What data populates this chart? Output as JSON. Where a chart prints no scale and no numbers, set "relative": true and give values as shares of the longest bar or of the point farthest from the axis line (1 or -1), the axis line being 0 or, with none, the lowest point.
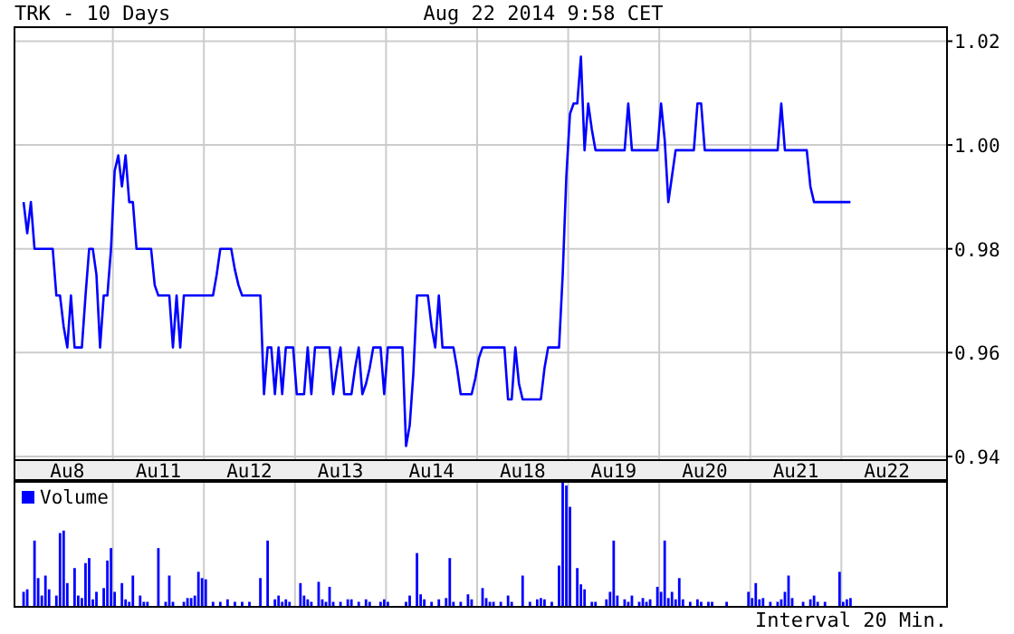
{
  "chart_data": [
    {
      "type": "line",
      "title": "TRK - 10 Days",
      "subtitle": "Aug 22 2014 9:58 CET",
      "color": "#0000ff",
      "grid": true,
      "categories": [
        null,
        null,
        null,
        null,
        null,
        null,
        null,
        null,
        null,
        null,
        null,
        null,
        null,
        null,
        "Au8",
        null,
        null,
        null,
        null,
        null,
        null,
        null,
        null,
        null,
        null,
        null,
        null,
        null,
        null,
        null,
        null,
        null,
        null,
        null,
        null,
        null,
        null,
        null,
        null,
        "Au11",
        null,
        null,
        null,
        null,
        null,
        null,
        null,
        null,
        null,
        null,
        null,
        null,
        null,
        null,
        null,
        null,
        null,
        null,
        null,
        null,
        null,
        null,
        null,
        null,
        "Au12",
        null,
        null,
        null,
        null,
        null,
        null,
        null,
        null,
        null,
        null,
        null,
        null,
        null,
        null,
        null,
        null,
        null,
        null,
        null,
        null,
        null,
        null,
        null,
        null,
        "Au13",
        null,
        null,
        null,
        null,
        null,
        null,
        null,
        null,
        null,
        null,
        null,
        null,
        null,
        null,
        null,
        null,
        null,
        null,
        null,
        null,
        null,
        null,
        null,
        null,
        "Au14",
        null,
        null,
        null,
        null,
        null,
        null,
        null,
        null,
        null,
        null,
        null,
        null,
        null,
        null,
        null,
        null,
        null,
        null,
        null,
        null,
        null,
        null,
        null,
        null,
        "Au18",
        null,
        null,
        null,
        null,
        null,
        null,
        null,
        null,
        null,
        null,
        null,
        null,
        null,
        null,
        null,
        null,
        null,
        null,
        null,
        null,
        null,
        null,
        null,
        null,
        "Au19",
        null,
        null,
        null,
        null,
        null,
        null,
        null,
        null,
        null,
        null,
        null,
        null,
        null,
        null,
        null,
        null,
        null,
        null,
        null,
        null,
        null,
        null,
        null,
        null,
        "Au20",
        null,
        null,
        null,
        null,
        null,
        null,
        null,
        null,
        null,
        null,
        null,
        null,
        null,
        null,
        null,
        null,
        null,
        null,
        null,
        null,
        null,
        null,
        null,
        null,
        "Au21",
        null,
        null,
        null,
        null,
        null,
        null,
        null,
        null,
        null,
        null,
        null,
        null,
        null,
        null,
        null,
        null,
        null,
        null,
        null,
        null,
        null,
        null,
        null,
        null,
        "Au22",
        null,
        null,
        null,
        null,
        null,
        null,
        null,
        null,
        null,
        null,
        null,
        null,
        null,
        null,
        null,
        null
      ],
      "ylim": [
        0.9393,
        1.0227
      ],
      "yticks": [
        0.94,
        0.96,
        0.98,
        {
          "value": 1,
          "label": "1.00"
        },
        1.02
      ],
      "values": [
        null,
        null,
        0.989,
        0.983,
        0.989,
        0.98,
        0.98,
        0.98,
        0.98,
        0.98,
        0.98,
        0.971,
        0.971,
        0.965,
        0.961,
        0.971,
        0.961,
        0.961,
        0.961,
        0.971,
        0.98,
        0.98,
        0.975,
        0.961,
        0.971,
        0.971,
        0.98,
        0.995,
        0.998,
        0.992,
        0.998,
        0.989,
        0.989,
        0.98,
        0.98,
        0.98,
        0.98,
        0.98,
        0.973,
        0.971,
        0.971,
        0.971,
        0.971,
        0.961,
        0.971,
        0.961,
        0.971,
        0.971,
        0.971,
        0.971,
        0.971,
        0.971,
        0.971,
        0.971,
        0.971,
        0.975,
        0.98,
        0.98,
        0.98,
        0.98,
        0.976,
        0.973,
        0.971,
        0.971,
        0.971,
        0.971,
        0.971,
        0.971,
        0.952,
        0.961,
        0.961,
        0.952,
        0.961,
        0.952,
        0.961,
        0.961,
        0.961,
        0.952,
        0.952,
        0.952,
        0.961,
        0.952,
        0.961,
        0.961,
        0.961,
        0.961,
        0.961,
        0.952,
        0.957,
        0.961,
        0.952,
        0.952,
        0.952,
        0.957,
        0.961,
        0.952,
        0.954,
        0.957,
        0.961,
        0.961,
        0.961,
        0.952,
        0.961,
        0.961,
        0.961,
        0.961,
        0.961,
        0.942,
        0.946,
        0.956,
        0.971,
        0.971,
        0.971,
        0.971,
        0.965,
        0.961,
        0.971,
        0.961,
        0.961,
        0.961,
        0.961,
        0.957,
        0.952,
        0.952,
        0.952,
        0.952,
        0.955,
        0.959,
        0.961,
        0.961,
        0.961,
        0.961,
        0.961,
        0.961,
        0.961,
        0.951,
        0.951,
        0.961,
        0.954,
        0.951,
        0.951,
        0.951,
        0.951,
        0.951,
        0.951,
        0.957,
        0.961,
        0.961,
        0.961,
        0.961,
        0.975,
        0.994,
        1.006,
        1.008,
        1.008,
        1.017,
        0.999,
        1.008,
        1.003,
        0.999,
        0.999,
        0.999,
        0.999,
        0.999,
        0.999,
        0.999,
        0.999,
        0.999,
        1.008,
        0.999,
        0.999,
        0.999,
        0.999,
        0.999,
        0.999,
        0.999,
        0.999,
        1.008,
        1.001,
        0.989,
        0.994,
        0.999,
        0.999,
        0.999,
        0.999,
        0.999,
        0.999,
        1.008,
        1.008,
        0.999,
        0.999,
        0.999,
        0.999,
        0.999,
        0.999,
        0.999,
        0.999,
        0.999,
        0.999,
        0.999,
        0.999,
        0.999,
        0.999,
        0.999,
        0.999,
        0.999,
        0.999,
        0.999,
        0.999,
        0.999,
        1.008,
        0.999,
        0.999,
        0.999,
        0.999,
        0.999,
        0.999,
        0.999,
        0.992,
        0.989,
        0.989,
        0.989,
        0.989,
        0.989,
        0.989,
        0.989,
        0.989,
        0.989,
        0.989,
        0.989,
        null,
        null,
        null,
        null,
        null,
        null,
        null,
        null,
        null,
        null,
        null,
        null,
        null,
        null,
        null,
        null,
        null,
        null,
        null,
        null,
        null,
        null,
        null,
        null,
        null,
        null
      ]
    },
    {
      "type": "bar",
      "relative": true,
      "grid": "x",
      "legend": "top left",
      "categories": [
        null,
        null,
        null,
        null,
        null,
        null,
        null,
        null,
        null,
        null,
        null,
        null,
        null,
        null,
        null,
        null,
        null,
        null,
        null,
        null,
        null,
        null,
        null,
        null,
        null,
        null,
        null,
        null,
        null,
        null,
        null,
        null,
        null,
        null,
        null,
        null,
        null,
        null,
        null,
        null,
        null,
        null,
        null,
        null,
        null,
        null,
        null,
        null,
        null,
        null,
        null,
        null,
        null,
        null,
        null,
        null,
        null,
        null,
        null,
        null,
        null,
        null,
        null,
        null,
        null,
        null,
        null,
        null,
        null,
        null,
        null,
        null,
        null,
        null,
        null,
        null,
        null,
        null,
        null,
        null,
        null,
        null,
        null,
        null,
        null,
        null,
        null,
        null,
        null,
        null,
        null,
        null,
        null,
        null,
        null,
        null,
        null,
        null,
        null,
        null,
        null,
        null,
        null,
        null,
        null,
        null,
        null,
        null,
        null,
        null,
        null,
        null,
        null,
        null,
        null,
        null,
        null,
        null,
        null,
        null,
        null,
        null,
        null,
        null,
        null,
        null,
        null,
        null,
        null,
        null,
        null,
        null,
        null,
        null,
        null,
        null,
        null,
        null,
        null,
        null,
        null,
        null,
        null,
        null,
        null,
        null,
        null,
        null,
        null,
        null,
        null,
        null,
        null,
        null,
        null,
        null,
        null,
        null,
        null,
        null,
        null,
        null,
        null,
        null,
        null,
        null,
        null,
        null,
        null,
        null,
        null,
        null,
        null,
        null,
        null,
        null,
        null,
        null,
        null,
        null,
        null,
        null,
        null,
        null,
        null,
        null,
        null,
        null,
        null,
        null,
        null,
        null,
        null,
        null,
        null,
        null,
        null,
        null,
        null,
        null,
        null,
        null,
        null,
        null,
        null,
        null,
        null,
        null,
        null,
        null,
        null,
        null,
        null,
        null,
        null,
        null,
        null,
        null,
        null,
        null,
        null,
        null,
        null,
        null,
        null,
        null,
        null,
        null,
        null,
        null,
        null,
        null,
        null,
        null,
        null,
        null,
        null,
        null,
        null,
        null,
        null,
        null,
        null,
        null,
        null,
        null,
        null,
        null,
        null,
        null,
        null,
        null,
        null,
        null,
        null,
        null
      ],
      "annotations": [
        "Interval 20 Min."
      ],
      "series": [
        {
          "name": "Volume",
          "color": "#0000ff",
          "values": [
            null,
            null,
            0.12,
            0.14,
            null,
            0.53,
            0.23,
            0.09,
            0.25,
            0.14,
            null,
            0.09,
            0.59,
            0.61,
            0.19,
            null,
            0.31,
            0.09,
            0.07,
            0.35,
            0.39,
            0.06,
            0.12,
            null,
            0.15,
            0.37,
            0.47,
            0.12,
            null,
            0.19,
            0.06,
            0.04,
            0.25,
            null,
            0.09,
            0.04,
            0.04,
            null,
            null,
            0.47,
            null,
            0.04,
            0.25,
            0.04,
            null,
            null,
            0.04,
            0.07,
            0.07,
            0.09,
            0.28,
            0.23,
            0.22,
            null,
            0.04,
            null,
            0.04,
            null,
            0.06,
            null,
            0.04,
            null,
            0.04,
            null,
            0.04,
            null,
            null,
            0.23,
            null,
            0.53,
            null,
            0.06,
            0.09,
            0.04,
            0.06,
            0.04,
            null,
            null,
            0.19,
            0.09,
            0.06,
            0.04,
            null,
            0.2,
            0.06,
            0.04,
            0.16,
            0.04,
            null,
            0.04,
            null,
            0.06,
            0.06,
            null,
            0.04,
            null,
            0.06,
            0.04,
            null,
            null,
            0.04,
            0.06,
            0.04,
            null,
            null,
            null,
            null,
            0.04,
            0.09,
            null,
            0.43,
            0.1,
            0.06,
            null,
            0.04,
            null,
            0.06,
            null,
            0.07,
            0.39,
            0.04,
            null,
            0.04,
            null,
            0.1,
            0.06,
            null,
            null,
            0.15,
            0.07,
            0.04,
            0.04,
            null,
            0.04,
            null,
            0.09,
            0.04,
            null,
            null,
            0.25,
            null,
            0.04,
            null,
            0.06,
            0.07,
            0.06,
            null,
            0.04,
            null,
            0.33,
            1,
            0.97,
            0.8,
            null,
            0.31,
            0.18,
            0.14,
            null,
            0.04,
            0.04,
            null,
            null,
            0.06,
            0.12,
            0.53,
            0.09,
            null,
            0.06,
            0.04,
            0.09,
            null,
            0.04,
            0.07,
            0.04,
            0.06,
            null,
            0.16,
            0.12,
            0.53,
            0.07,
            0.12,
            0.06,
            0.23,
            0.06,
            null,
            0.04,
            null,
            0.06,
            0.04,
            null,
            0.04,
            0.04,
            null,
            null,
            null,
            0.04,
            null,
            null,
            null,
            null,
            null,
            0.12,
            0.07,
            0.19,
            0.06,
            0.07,
            null,
            0.04,
            null,
            0.04,
            0.06,
            0.12,
            0.25,
            0.07,
            null,
            null,
            0.04,
            null,
            0.06,
            0.09,
            0.04,
            null,
            0.04,
            null,
            null,
            null,
            0.28,
            0.04,
            0.06,
            0.07,
            null,
            null,
            null,
            null,
            null,
            null,
            null,
            null,
            null,
            null,
            null,
            null,
            null,
            null,
            null,
            null,
            null,
            null,
            null,
            null,
            null,
            null,
            null,
            null,
            null,
            null
          ]
        }
      ]
    }
  ]
}
